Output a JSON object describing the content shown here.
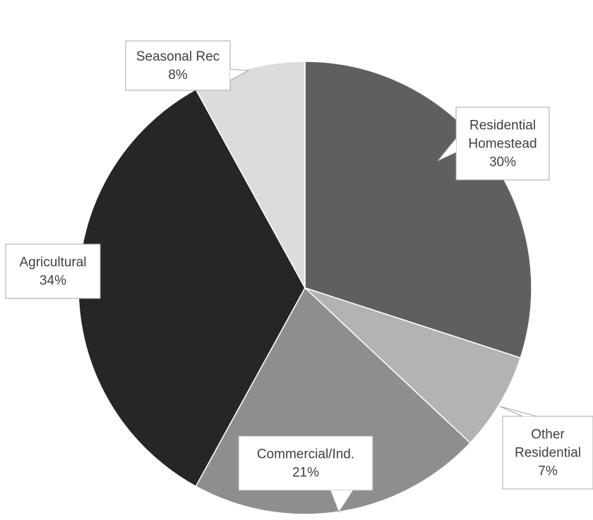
{
  "chart_data": {
    "type": "pie",
    "title": "",
    "start_angle_deg": 0,
    "direction": "clockwise",
    "slices": [
      {
        "label_lines": [
          "Residential",
          "Homestead"
        ],
        "percent_label": "30%",
        "value": 30,
        "color": "#5f5f5f"
      },
      {
        "label_lines": [
          "Other",
          "Residential"
        ],
        "percent_label": "7%",
        "value": 7,
        "color": "#b3b3b3"
      },
      {
        "label_lines": [
          "Commercial/Ind."
        ],
        "percent_label": "21%",
        "value": 21,
        "color": "#8e8e8e"
      },
      {
        "label_lines": [
          "Agricultural"
        ],
        "percent_label": "34%",
        "value": 34,
        "color": "#262626"
      },
      {
        "label_lines": [
          "Seasonal Rec"
        ],
        "percent_label": "8%",
        "value": 8,
        "color": "#dcdcdc"
      }
    ]
  }
}
